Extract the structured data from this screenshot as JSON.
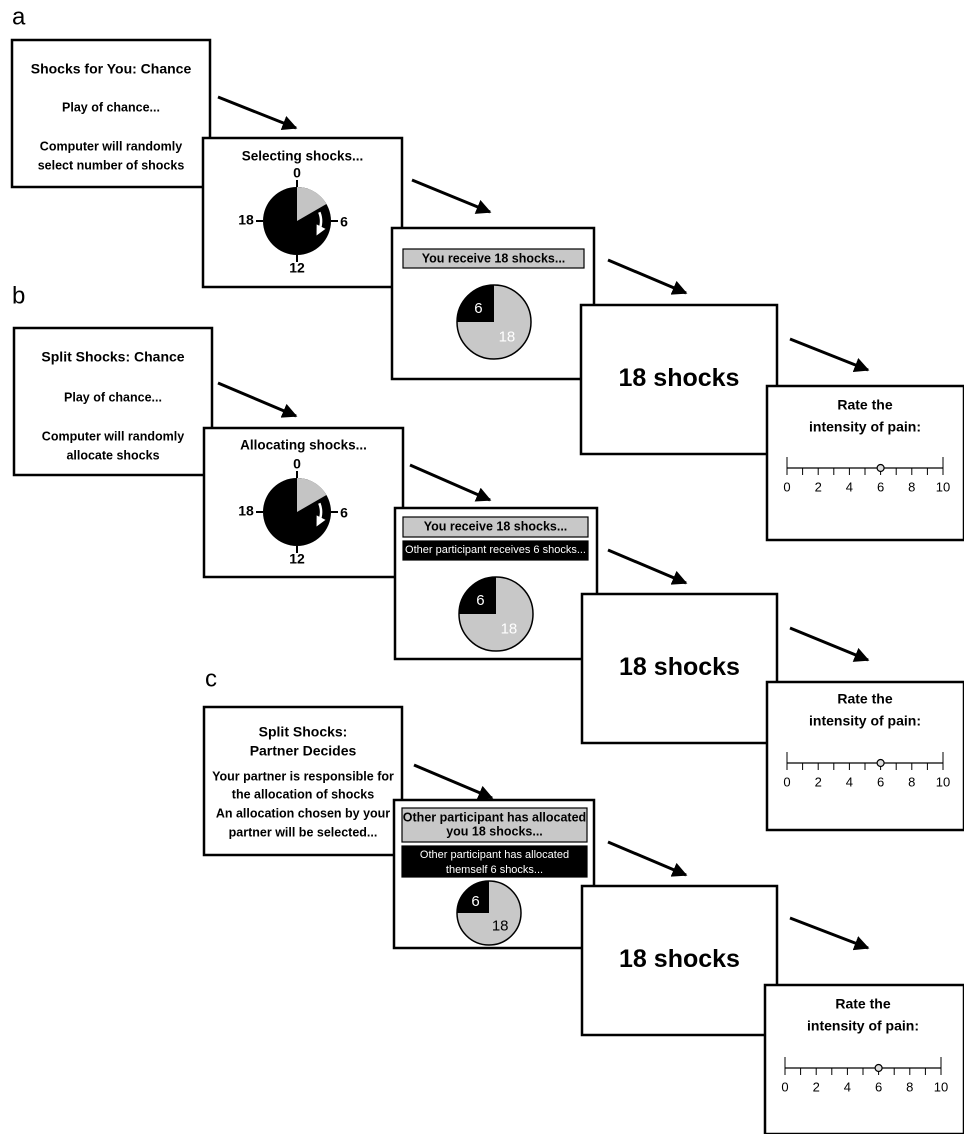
{
  "panels": [
    {
      "label": "a",
      "intro": {
        "title": [
          "Shocks for You: Chance"
        ],
        "body": [
          "Play of chance...",
          "Computer will randomly",
          "select number of shocks"
        ]
      },
      "selecting": {
        "title": "Selecting shocks...",
        "dial": [
          "0",
          "6",
          "12",
          "18"
        ]
      },
      "outcome": {
        "messages": [
          [
            "You receive 18 shocks..."
          ]
        ],
        "pie": [
          "6",
          "18"
        ]
      },
      "delivery": "18 shocks",
      "rating": {
        "prompt": [
          "Rate the",
          "intensity of pain:"
        ],
        "scale": [
          "0",
          "2",
          "4",
          "6",
          "8",
          "10"
        ]
      }
    },
    {
      "label": "b",
      "intro": {
        "title": [
          "Split Shocks: Chance"
        ],
        "body": [
          "Play of chance...",
          "Computer will randomly",
          "allocate shocks"
        ]
      },
      "selecting": {
        "title": "Allocating shocks...",
        "dial": [
          "0",
          "6",
          "12",
          "18"
        ]
      },
      "outcome": {
        "messages": [
          [
            "You receive 18 shocks..."
          ],
          [
            "Other participant receives 6 shocks..."
          ]
        ],
        "pie": [
          "6",
          "18"
        ]
      },
      "delivery": "18 shocks",
      "rating": {
        "prompt": [
          "Rate the",
          "intensity of pain:"
        ],
        "scale": [
          "0",
          "2",
          "4",
          "6",
          "8",
          "10"
        ]
      }
    },
    {
      "label": "c",
      "intro": {
        "title": [
          "Split Shocks:",
          "Partner Decides"
        ],
        "body": [
          "Your partner is responsible for",
          "the allocation of shocks",
          "An allocation chosen by your",
          "partner will be selected..."
        ]
      },
      "outcome": {
        "messages": [
          [
            "Other participant has allocated",
            "you 18 shocks..."
          ],
          [
            "Other participant has allocated",
            "themself 6 shocks..."
          ]
        ],
        "pie": [
          "6",
          "18"
        ]
      },
      "delivery": "18 shocks",
      "rating": {
        "prompt": [
          "Rate the",
          "intensity of pain:"
        ],
        "scale": [
          "0",
          "2",
          "4",
          "6",
          "8",
          "10"
        ]
      }
    }
  ]
}
